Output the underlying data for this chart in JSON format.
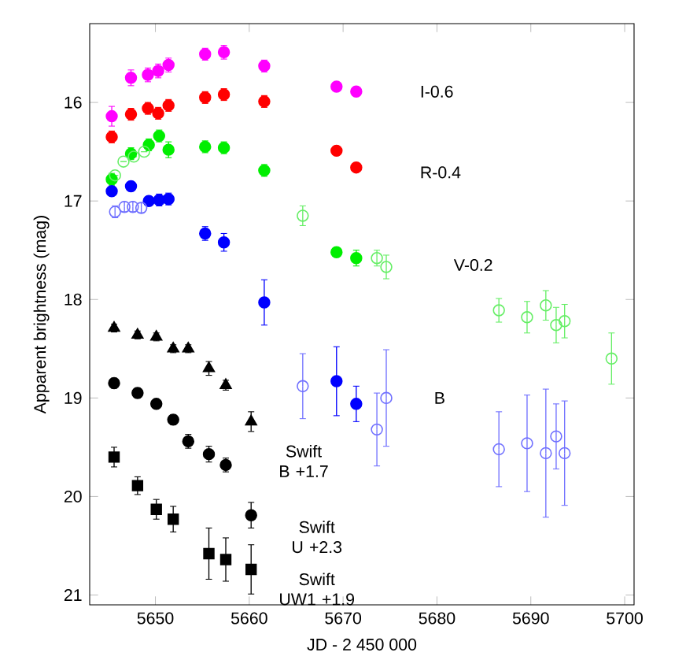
{
  "chart_data": {
    "type": "scatter",
    "xlabel": "JD - 2 450 000",
    "ylabel": "Apparent brightness (mag)",
    "xlim": [
      5643,
      5701
    ],
    "ylim": [
      21.1,
      15.2
    ],
    "xticks": [
      5650,
      5660,
      5670,
      5680,
      5690,
      5700
    ],
    "yticks": [
      16,
      17,
      18,
      19,
      20,
      21
    ],
    "series": [
      {
        "name": "I-0.6",
        "color": "#ff00ff",
        "marker": "circle",
        "x": [
          5645.35,
          5647.4,
          5649.2,
          5650.3,
          5651.4,
          5655.3,
          5657.3,
          5661.6,
          5669.3,
          5671.4
        ],
        "values": [
          16.14,
          15.75,
          15.72,
          15.68,
          15.62,
          15.51,
          15.49,
          15.63,
          15.84,
          15.89
        ],
        "errors": [
          0.1,
          0.08,
          0.07,
          0.07,
          0.07,
          0.06,
          0.07,
          0.06,
          null,
          null
        ]
      },
      {
        "name": "R-0.4",
        "color": "#ff0000",
        "marker": "circle",
        "x": [
          5645.35,
          5647.4,
          5649.2,
          5650.3,
          5651.4,
          5655.3,
          5657.3,
          5661.6,
          5669.3,
          5671.4
        ],
        "values": [
          16.35,
          16.12,
          16.06,
          16.11,
          16.03,
          15.95,
          15.92,
          15.99,
          16.49,
          16.66
        ],
        "errors": [
          0.06,
          0.06,
          0.06,
          0.06,
          0.06,
          0.06,
          0.06,
          0.06,
          null,
          null
        ]
      },
      {
        "name": "V-0.2",
        "color": "#00ee00",
        "marker": "circle",
        "x": [
          5645.35,
          5647.4,
          5649.3,
          5650.4,
          5651.4,
          5655.3,
          5657.3,
          5661.6,
          5669.3,
          5671.4
        ],
        "values": [
          16.78,
          16.52,
          16.43,
          16.34,
          16.48,
          16.45,
          16.46,
          16.69,
          17.52,
          17.58
        ],
        "errors": [
          0.06,
          0.06,
          0.06,
          0.06,
          0.08,
          0.06,
          0.06,
          0.06,
          null,
          0.08
        ]
      },
      {
        "color": "#66ee66",
        "marker": "open circle",
        "x": [
          5645.7,
          5646.6,
          5647.7,
          5648.8,
          5665.7,
          5673.6,
          5674.6,
          5686.6,
          5689.6,
          5691.6,
          5692.7,
          5693.6,
          5698.6
        ],
        "values": [
          16.74,
          16.6,
          16.55,
          16.5,
          17.15,
          17.58,
          17.67,
          18.11,
          18.18,
          18.06,
          18.26,
          18.22,
          18.6
        ],
        "errors": [
          null,
          null,
          null,
          null,
          0.1,
          0.08,
          0.12,
          0.12,
          0.16,
          0.15,
          0.18,
          0.17,
          0.26
        ]
      },
      {
        "name": "B",
        "color": "#0000ff",
        "marker": "circle",
        "x": [
          5645.35,
          5647.4,
          5649.3,
          5650.4,
          5651.4,
          5655.3,
          5657.3,
          5661.6,
          5669.3,
          5671.4
        ],
        "values": [
          16.9,
          16.85,
          17.0,
          16.99,
          16.98,
          17.33,
          17.42,
          18.03,
          18.83,
          19.06
        ],
        "errors": [
          null,
          null,
          null,
          0.06,
          0.06,
          0.07,
          0.09,
          0.23,
          0.35,
          0.18
        ]
      },
      {
        "color": "#7070ff",
        "marker": "open circle",
        "x": [
          5645.7,
          5646.7,
          5647.6,
          5648.5,
          5665.7,
          5673.6,
          5674.6,
          5686.6,
          5689.6,
          5691.6,
          5692.7,
          5693.6
        ],
        "values": [
          17.11,
          17.06,
          17.06,
          17.07,
          18.88,
          19.32,
          19.0,
          19.52,
          19.46,
          19.56,
          19.39,
          19.56
        ],
        "errors": [
          0.06,
          0.05,
          0.05,
          0.05,
          0.33,
          0.37,
          0.49,
          0.38,
          0.49,
          0.65,
          0.33,
          0.53
        ]
      },
      {
        "name": "Swift B +1.7",
        "color": "#000000",
        "marker": "triangle",
        "x": [
          5645.6,
          5648.1,
          5650.1,
          5651.9,
          5653.5,
          5655.7,
          5657.5,
          5660.2
        ],
        "values": [
          18.29,
          18.36,
          18.38,
          18.5,
          18.5,
          18.7,
          18.87,
          19.24
        ],
        "errors": [
          0.04,
          0.04,
          0.04,
          0.04,
          0.04,
          0.07,
          0.05,
          0.1
        ]
      },
      {
        "name": "Swift U +2.3",
        "color": "#000000",
        "marker": "circle",
        "x": [
          5645.6,
          5648.1,
          5650.1,
          5651.9,
          5653.5,
          5655.7,
          5657.5,
          5660.2
        ],
        "values": [
          18.85,
          18.95,
          19.06,
          19.22,
          19.44,
          19.57,
          19.68,
          20.19
        ],
        "errors": [
          0.05,
          0.05,
          0.04,
          0.05,
          0.07,
          0.08,
          0.07,
          0.13
        ]
      },
      {
        "name": "Swift UW1 +1.9",
        "color": "#000000",
        "marker": "square",
        "x": [
          5645.6,
          5648.1,
          5650.1,
          5651.9,
          5655.7,
          5657.5,
          5660.2
        ],
        "values": [
          19.6,
          19.89,
          20.13,
          20.23,
          20.58,
          20.64,
          20.74
        ],
        "errors": [
          0.1,
          0.09,
          0.1,
          0.13,
          0.26,
          0.22,
          0.25
        ]
      }
    ]
  }
}
